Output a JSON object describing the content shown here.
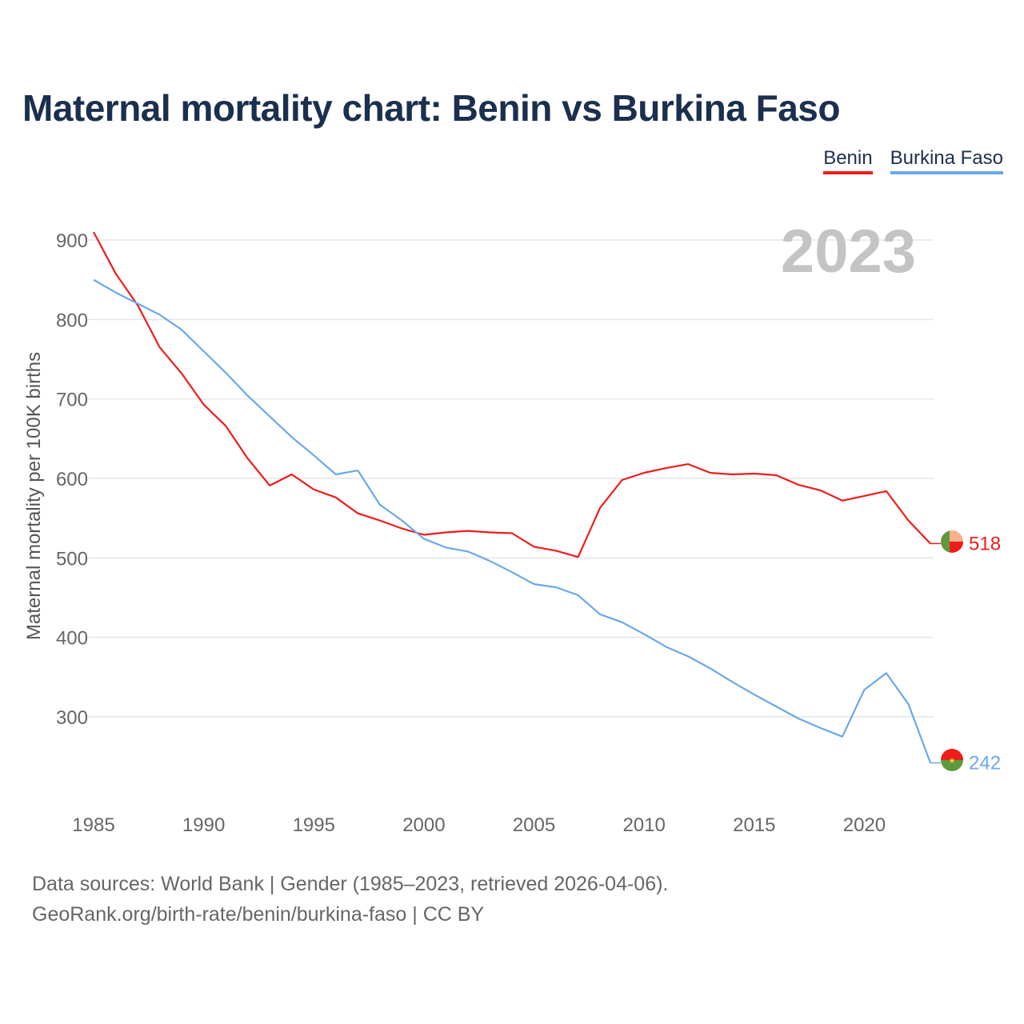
{
  "title": "Maternal mortality chart: Benin vs Burkina Faso",
  "source_line1": "Data sources: World Bank | Gender (1985–2023, retrieved 2026-04-06).",
  "source_line2": "GeoRank.org/birth-rate/benin/burkina-faso | CC BY",
  "chart_data": {
    "type": "line",
    "title": "Maternal mortality chart: Benin vs Burkina Faso",
    "xlabel": "",
    "ylabel": "Maternal mortality per 100K births",
    "year_label": "2023",
    "x": [
      1985,
      1986,
      1987,
      1988,
      1989,
      1990,
      1991,
      1992,
      1993,
      1994,
      1995,
      1996,
      1997,
      1998,
      1999,
      2000,
      2001,
      2002,
      2003,
      2004,
      2005,
      2006,
      2007,
      2008,
      2009,
      2010,
      2011,
      2012,
      2013,
      2014,
      2015,
      2016,
      2017,
      2018,
      2019,
      2020,
      2021,
      2022,
      2023
    ],
    "xlim": [
      1985,
      2023
    ],
    "ylim": [
      200,
      920
    ],
    "x_ticks": [
      1985,
      1990,
      1995,
      2000,
      2005,
      2010,
      2015,
      2020
    ],
    "y_ticks": [
      300,
      400,
      500,
      600,
      700,
      800,
      900
    ],
    "grid": true,
    "legend_position": "top-right",
    "series": [
      {
        "name": "Benin",
        "color": "#ee1c1c",
        "end_value_label": "518",
        "flag": "benin-flag",
        "values": [
          910,
          858,
          818,
          765,
          732,
          693,
          666,
          625,
          591,
          605,
          586,
          576,
          556,
          547,
          537,
          529,
          532,
          534,
          532,
          531,
          514,
          509,
          501,
          563,
          598,
          607,
          613,
          618,
          607,
          605,
          606,
          604,
          592,
          585,
          572,
          578,
          584,
          547,
          518
        ]
      },
      {
        "name": "Burkina Faso",
        "color": "#6aa9e8",
        "end_value_label": "242",
        "flag": "burkina-faso-flag",
        "values": [
          850,
          834,
          820,
          806,
          787,
          760,
          733,
          704,
          678,
          652,
          629,
          605,
          610,
          567,
          547,
          524,
          513,
          508,
          496,
          482,
          467,
          463,
          453,
          429,
          419,
          404,
          388,
          376,
          361,
          344,
          328,
          313,
          298,
          286,
          275,
          334,
          355,
          316,
          242
        ]
      }
    ]
  }
}
